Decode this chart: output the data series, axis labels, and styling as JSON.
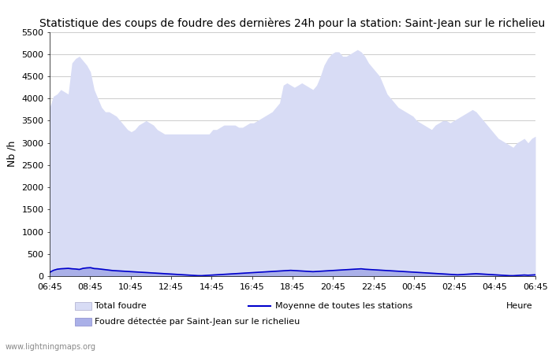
{
  "title": "Statistique des coups de foudre des dernières 24h pour la station: Saint-Jean sur le richelieu",
  "ylabel": "Nb /h",
  "xlabel": "Heure",
  "watermark": "www.lightningmaps.org",
  "x_labels": [
    "06:45",
    "08:45",
    "10:45",
    "12:45",
    "14:45",
    "16:45",
    "18:45",
    "20:45",
    "22:45",
    "00:45",
    "02:45",
    "04:45",
    "06:45"
  ],
  "ylim": [
    0,
    5500
  ],
  "yticks": [
    0,
    500,
    1000,
    1500,
    2000,
    2500,
    3000,
    3500,
    4000,
    4500,
    5000,
    5500
  ],
  "total_foudre_color": "#d8dcf5",
  "station_foudre_color": "#aab0e8",
  "moyenne_color": "#0000cc",
  "bg_color": "#ffffff",
  "grid_color": "#cccccc",
  "total_foudre": [
    3800,
    4050,
    4100,
    4200,
    4150,
    4100,
    4800,
    4900,
    4950,
    4850,
    4750,
    4600,
    4200,
    4000,
    3800,
    3700,
    3700,
    3650,
    3600,
    3500,
    3400,
    3300,
    3250,
    3300,
    3400,
    3450,
    3500,
    3450,
    3400,
    3300,
    3250,
    3200,
    3200,
    3200,
    3200,
    3200,
    3200,
    3200,
    3200,
    3200,
    3200,
    3200,
    3200,
    3200,
    3300,
    3300,
    3350,
    3400,
    3400,
    3400,
    3400,
    3350,
    3350,
    3400,
    3450,
    3450,
    3500,
    3550,
    3600,
    3650,
    3700,
    3800,
    3900,
    4300,
    4350,
    4300,
    4250,
    4300,
    4350,
    4300,
    4250,
    4200,
    4300,
    4500,
    4750,
    4900,
    5000,
    5050,
    5050,
    4950,
    4950,
    5000,
    5050,
    5100,
    5050,
    4950,
    4800,
    4700,
    4600,
    4500,
    4300,
    4100,
    4000,
    3900,
    3800,
    3750,
    3700,
    3650,
    3600,
    3500,
    3450,
    3400,
    3350,
    3300,
    3400,
    3450,
    3500,
    3500,
    3450,
    3500,
    3550,
    3600,
    3650,
    3700,
    3750,
    3700,
    3600,
    3500,
    3400,
    3300,
    3200,
    3100,
    3050,
    3000,
    2950,
    2900,
    3000,
    3050,
    3100,
    3000,
    3100,
    3150
  ],
  "station_foudre": [
    100,
    150,
    180,
    190,
    195,
    200,
    190,
    185,
    175,
    200,
    210,
    215,
    195,
    190,
    180,
    170,
    160,
    150,
    145,
    140,
    135,
    130,
    125,
    120,
    115,
    110,
    105,
    100,
    95,
    90,
    85,
    80,
    75,
    70,
    65,
    60,
    55,
    50,
    45,
    40,
    35,
    30,
    35,
    40,
    45,
    50,
    55,
    60,
    65,
    70,
    75,
    80,
    85,
    90,
    95,
    100,
    105,
    110,
    115,
    120,
    125,
    130,
    135,
    140,
    145,
    150,
    145,
    140,
    135,
    130,
    125,
    120,
    125,
    130,
    135,
    140,
    145,
    150,
    155,
    160,
    165,
    170,
    175,
    180,
    185,
    175,
    170,
    165,
    160,
    155,
    150,
    145,
    140,
    135,
    130,
    125,
    120,
    115,
    110,
    105,
    100,
    95,
    90,
    85,
    80,
    75,
    70,
    65,
    60,
    55,
    50,
    55,
    60,
    65,
    70,
    75,
    70,
    65,
    60,
    55,
    50,
    45,
    40,
    35,
    30,
    25,
    30,
    35,
    40,
    35,
    40,
    45
  ],
  "moyenne": [
    85,
    130,
    155,
    165,
    170,
    175,
    165,
    160,
    150,
    175,
    185,
    190,
    170,
    165,
    155,
    145,
    135,
    125,
    120,
    115,
    110,
    105,
    100,
    95,
    90,
    85,
    80,
    75,
    70,
    65,
    60,
    55,
    50,
    45,
    40,
    35,
    30,
    25,
    20,
    15,
    10,
    10,
    15,
    20,
    25,
    30,
    35,
    40,
    45,
    50,
    55,
    60,
    65,
    70,
    75,
    80,
    85,
    90,
    95,
    100,
    105,
    110,
    115,
    120,
    125,
    130,
    125,
    120,
    115,
    110,
    105,
    100,
    105,
    110,
    115,
    120,
    125,
    130,
    135,
    140,
    145,
    150,
    155,
    160,
    165,
    155,
    150,
    145,
    140,
    135,
    130,
    125,
    120,
    115,
    110,
    105,
    100,
    95,
    90,
    85,
    80,
    75,
    70,
    65,
    60,
    55,
    50,
    45,
    40,
    35,
    30,
    35,
    40,
    45,
    50,
    55,
    50,
    45,
    40,
    35,
    30,
    25,
    20,
    15,
    10,
    10,
    15,
    20,
    25,
    20,
    25,
    30
  ],
  "legend_total_foudre": "Total foudre",
  "legend_station": "Foudre détectée par Saint-Jean sur le richelieu",
  "legend_moyenne": "Moyenne de toutes les stations",
  "title_fontsize": 10,
  "tick_fontsize": 8,
  "label_fontsize": 9
}
